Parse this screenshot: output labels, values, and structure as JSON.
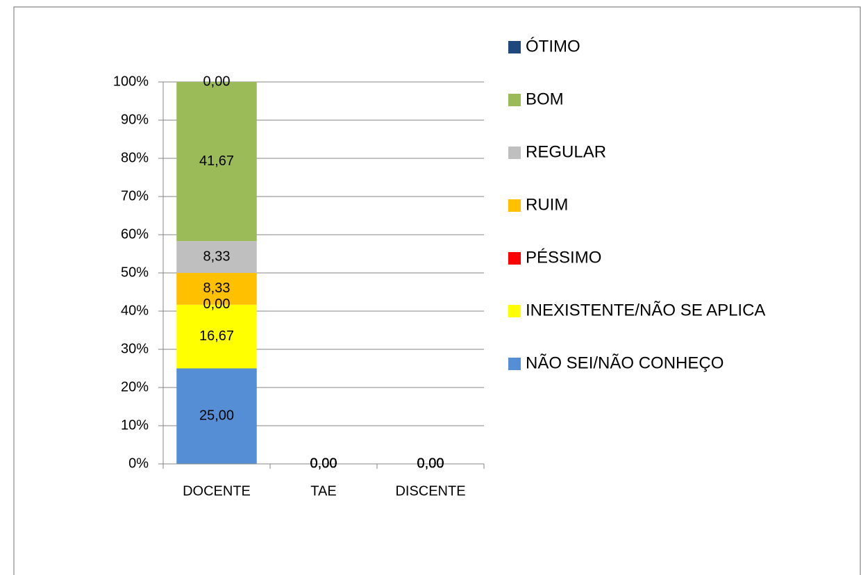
{
  "chart_data": {
    "type": "stacked_bar",
    "categories": [
      "DOCENTE",
      "TAE",
      "DISCENTE"
    ],
    "series": [
      {
        "name": "ÓTIMO",
        "color": "#1f497d",
        "values": [
          0,
          0,
          0
        ],
        "value_labels": [
          "0,00",
          "0,00",
          "0,00"
        ]
      },
      {
        "name": "BOM",
        "color": "#9bbb59",
        "values": [
          41.67,
          0,
          0
        ],
        "value_labels": [
          "41,67",
          "0,00",
          "0,00"
        ]
      },
      {
        "name": "REGULAR",
        "color": "#bfbfbf",
        "values": [
          8.33,
          0,
          0
        ],
        "value_labels": [
          "8,33",
          "0,00",
          "0,00"
        ]
      },
      {
        "name": "RUIM",
        "color": "#ffc000",
        "values": [
          8.33,
          0,
          0
        ],
        "value_labels": [
          "8,33",
          "0,00",
          "0,00"
        ]
      },
      {
        "name": "PÉSSIMO",
        "color": "#ff0000",
        "values": [
          0,
          0,
          0
        ],
        "value_labels": [
          "0,00",
          "0,00",
          "0,00"
        ]
      },
      {
        "name": "INEXISTENTE/NÃO SE APLICA",
        "color": "#ffff00",
        "values": [
          16.67,
          0,
          0
        ],
        "value_labels": [
          "16,67",
          "0,00",
          "0,00"
        ]
      },
      {
        "name": "NÃO SEI/NÃO CONHEÇO",
        "color": "#558ed5",
        "values": [
          25,
          0,
          0
        ],
        "value_labels": [
          "25,00",
          "0,00",
          "0,00"
        ]
      }
    ],
    "ylim": [
      0,
      100
    ],
    "yticks": [
      {
        "value": 0,
        "label": "0%"
      },
      {
        "value": 10,
        "label": "10%"
      },
      {
        "value": 20,
        "label": "20%"
      },
      {
        "value": 30,
        "label": "30%"
      },
      {
        "value": 40,
        "label": "40%"
      },
      {
        "value": 50,
        "label": "50%"
      },
      {
        "value": 60,
        "label": "60%"
      },
      {
        "value": 70,
        "label": "70%"
      },
      {
        "value": 80,
        "label": "80%"
      },
      {
        "value": 90,
        "label": "90%"
      },
      {
        "value": 100,
        "label": "100%"
      }
    ],
    "grid": true,
    "legend": "right"
  }
}
